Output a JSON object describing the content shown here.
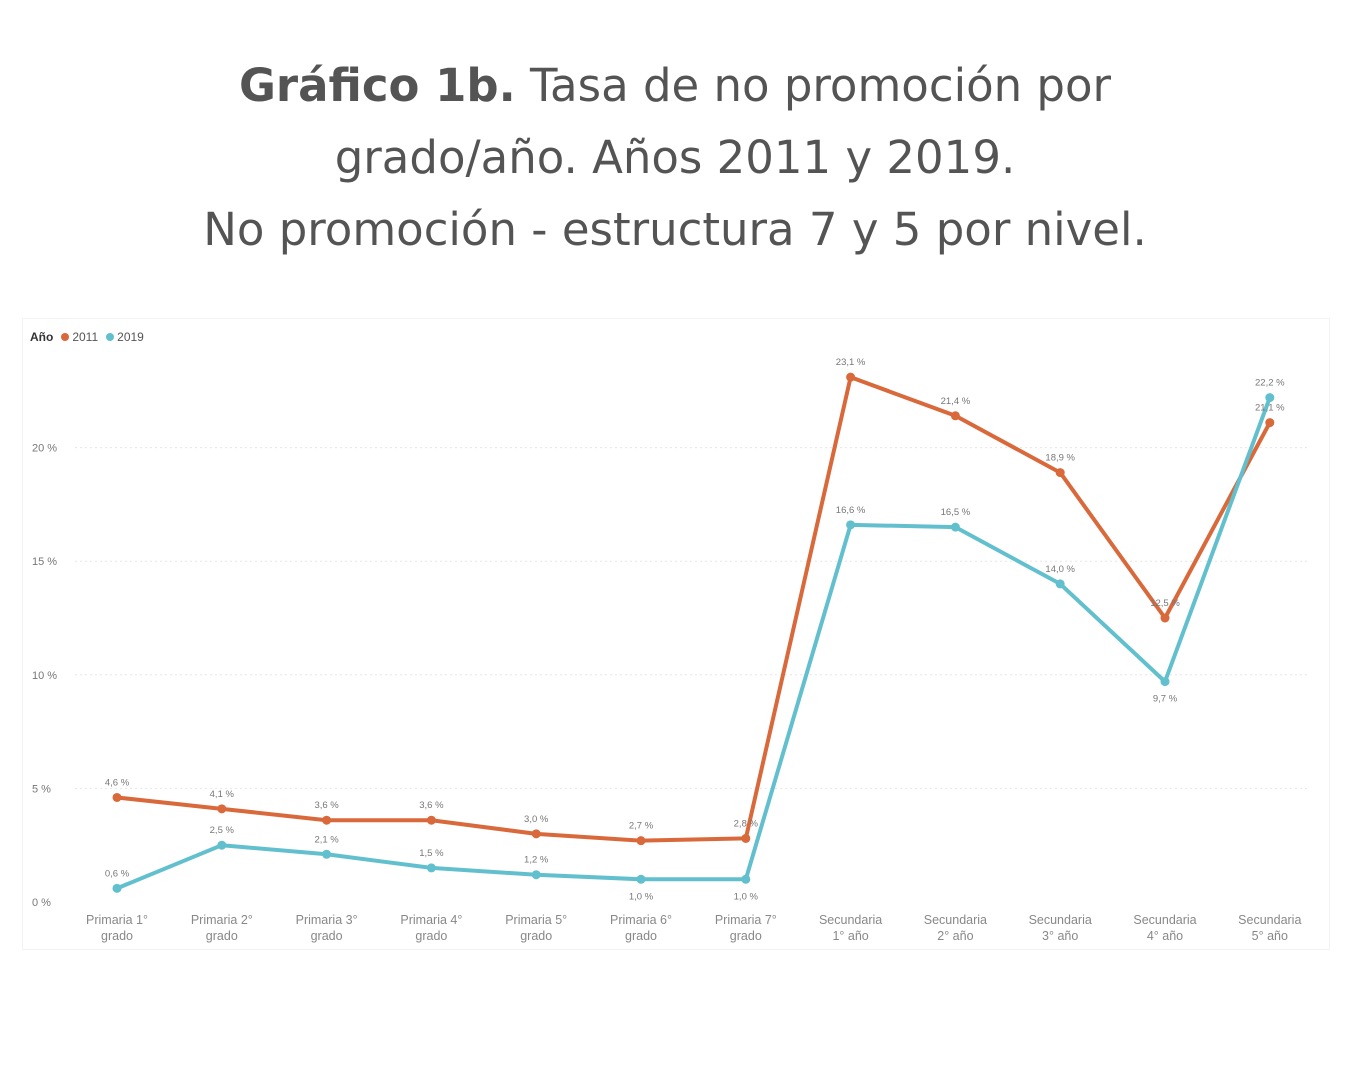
{
  "title": {
    "bold": "Gráfico 1b.",
    "line1_rest": " Tasa de no promoción por",
    "line2": "grado/año. Años 2011 y 2019.",
    "line3": "No promoción - estructura 7 y 5 por nivel."
  },
  "legend": {
    "title": "Año",
    "items": [
      "2011",
      "2019"
    ]
  },
  "colors": {
    "series_2011": "#d9693b",
    "series_2019": "#62c0ce",
    "gridline": "#e6e6e6"
  },
  "chart_data": {
    "type": "line",
    "categories": [
      [
        "Primaria 1°",
        "grado"
      ],
      [
        "Primaria 2°",
        "grado"
      ],
      [
        "Primaria 3°",
        "grado"
      ],
      [
        "Primaria 4°",
        "grado"
      ],
      [
        "Primaria 5°",
        "grado"
      ],
      [
        "Primaria 6°",
        "grado"
      ],
      [
        "Primaria 7°",
        "grado"
      ],
      [
        "Secundaria",
        "1° año"
      ],
      [
        "Secundaria",
        "2° año"
      ],
      [
        "Secundaria",
        "3° año"
      ],
      [
        "Secundaria",
        "4° año"
      ],
      [
        "Secundaria",
        "5° año"
      ]
    ],
    "series": [
      {
        "name": "2011",
        "values": [
          4.6,
          4.1,
          3.6,
          3.6,
          3.0,
          2.7,
          2.8,
          23.1,
          21.4,
          18.9,
          12.5,
          21.1
        ],
        "labels": [
          "4,6 %",
          "4,1 %",
          "3,6 %",
          "3,6 %",
          "3,0 %",
          "2,7 %",
          "2,8 %",
          "23,1 %",
          "21,4 %",
          "18,9 %",
          "12,5 %",
          "21,1 %"
        ]
      },
      {
        "name": "2019",
        "values": [
          0.6,
          2.5,
          2.1,
          1.5,
          1.2,
          1.0,
          1.0,
          16.6,
          16.5,
          14.0,
          9.7,
          22.2
        ],
        "labels": [
          "0,6 %",
          "2,5 %",
          "2,1 %",
          "1,5 %",
          "1,2 %",
          "1,0 %",
          "1,0 %",
          "16,6 %",
          "16,5 %",
          "14,0 %",
          "9,7 %",
          "22,2 %"
        ]
      }
    ],
    "yticks": [
      0,
      5,
      10,
      15,
      20
    ],
    "ytick_labels": [
      "0 %",
      "5 %",
      "10 %",
      "15 %",
      "20 %"
    ],
    "ylim": [
      0,
      25
    ],
    "grid": true,
    "legend_position": "top-left"
  }
}
